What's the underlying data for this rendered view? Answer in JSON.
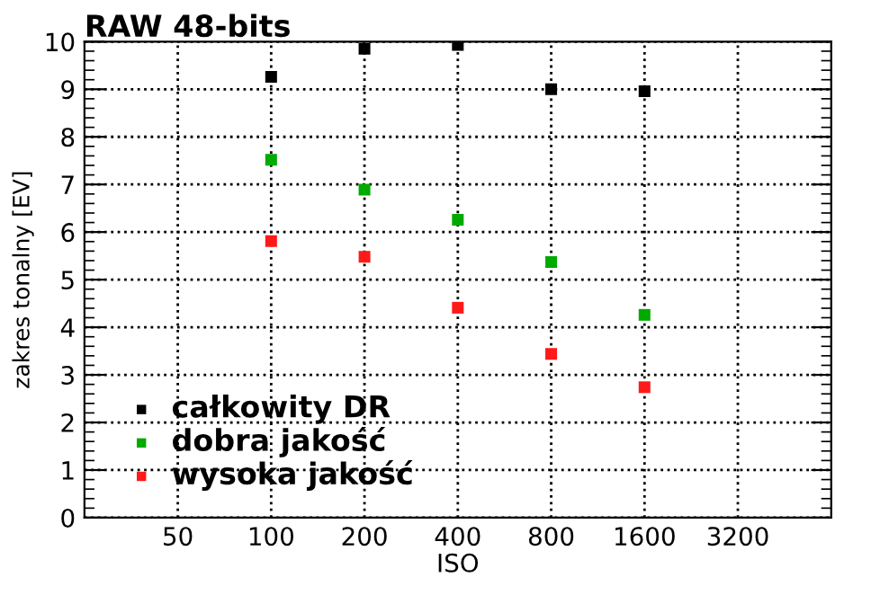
{
  "chart_data": {
    "type": "scatter",
    "title": "RAW 48-bits",
    "xlabel": "ISO",
    "ylabel": "zakres tonalny [EV]",
    "log": "x",
    "x": [
      100,
      200,
      400,
      800,
      1600
    ],
    "series": [
      {
        "name": "całkowity DR",
        "color": "#000000",
        "values": [
          9.26,
          9.85,
          9.93,
          9.0,
          8.96
        ]
      },
      {
        "name": "dobra jakość",
        "color": "#00aa00",
        "values": [
          7.52,
          6.89,
          6.26,
          5.37,
          4.26
        ]
      },
      {
        "name": "wysoka jakość",
        "color": "#ff1a1a",
        "values": [
          5.81,
          5.48,
          4.41,
          3.44,
          2.74
        ]
      }
    ],
    "xlim": [
      25,
      6400
    ],
    "xticks": [
      50,
      100,
      200,
      400,
      800,
      1600,
      3200
    ],
    "ylim": [
      0,
      10
    ],
    "yticks": [
      0,
      1,
      2,
      3,
      4,
      5,
      6,
      7,
      8,
      9,
      10
    ],
    "grid": true,
    "legend": "bottom left",
    "marker": "square"
  }
}
